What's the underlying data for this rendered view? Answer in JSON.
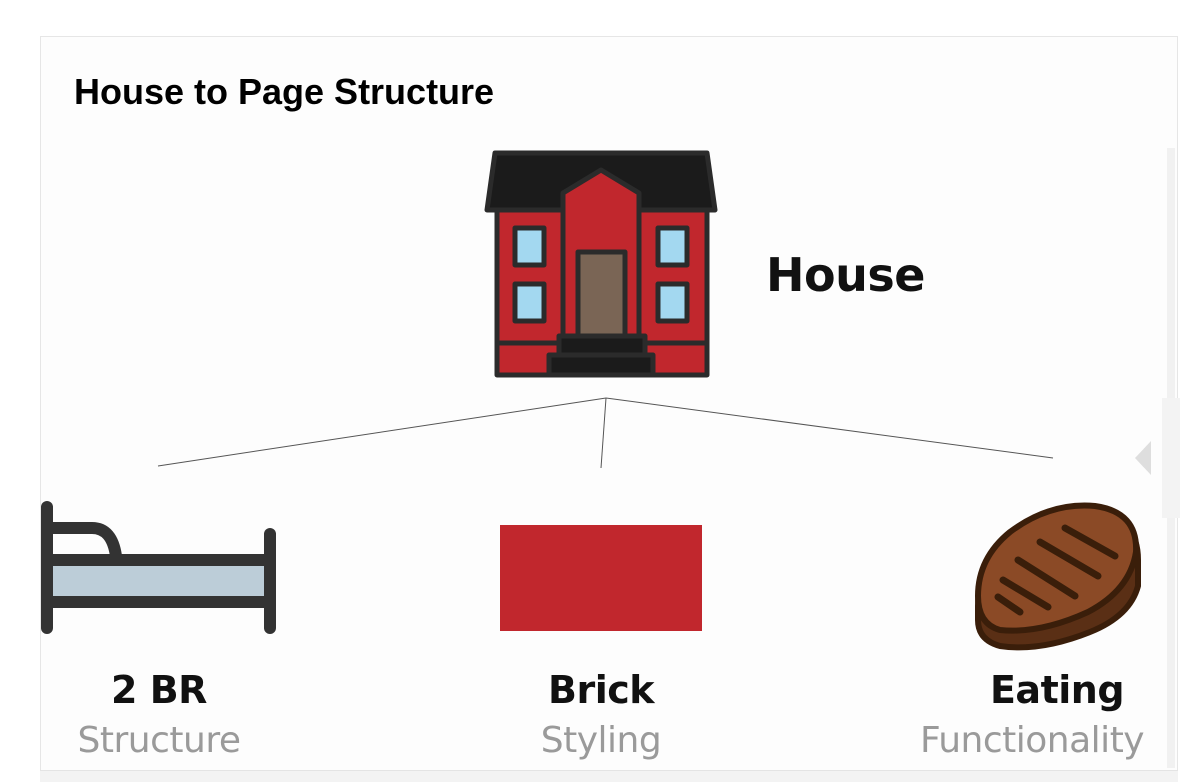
{
  "title": "House to Page Structure",
  "root": {
    "label": "House",
    "icon": "house-icon"
  },
  "children": [
    {
      "title": "2 BR",
      "subtitle": "Structure",
      "icon": "bed-icon"
    },
    {
      "title": "Brick",
      "subtitle": "Styling",
      "icon": "brick-icon"
    },
    {
      "title": "Eating",
      "subtitle": "Functionality",
      "icon": "steak-icon"
    }
  ],
  "colors": {
    "brick_red": "#c1272d",
    "roof": "#1b1b1b",
    "window": "#a3d8f0",
    "door": "#7a6555",
    "bed_mattress": "#bccdd8",
    "bed_frame": "#333333",
    "steak": "#8b4a26",
    "steak_outline": "#3a1e0a"
  }
}
